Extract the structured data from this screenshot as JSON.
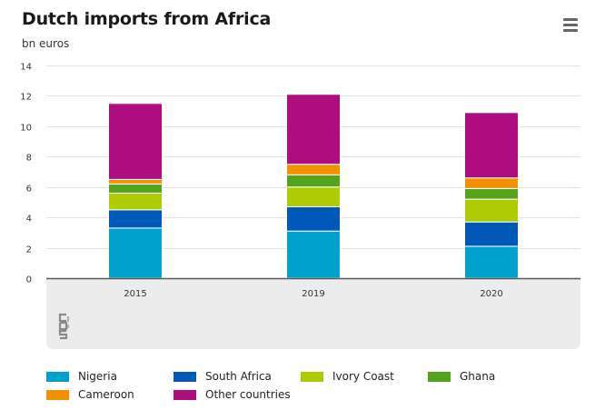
{
  "header": {
    "title": "Dutch imports from Africa",
    "unit": "bn euros"
  },
  "colors": {
    "Nigeria": "#00a1cd",
    "South Africa": "#0058b8",
    "Ivory Coast": "#afcb05",
    "Ghana": "#53a31d",
    "Cameroon": "#f39200",
    "Other countries": "#af0e80"
  },
  "chart_data": {
    "type": "bar",
    "stacked": true,
    "title": "Dutch imports from Africa",
    "ylabel": "bn euros",
    "xlabel": "",
    "categories": [
      "2015",
      "2019",
      "2020"
    ],
    "ylim": [
      0,
      14
    ],
    "yticks": [
      0,
      2,
      4,
      6,
      8,
      10,
      12,
      14
    ],
    "grid": true,
    "legend_position": "bottom",
    "series": [
      {
        "name": "Nigeria",
        "values": [
          3.3,
          3.1,
          2.1
        ]
      },
      {
        "name": "South Africa",
        "values": [
          1.2,
          1.6,
          1.6
        ]
      },
      {
        "name": "Ivory Coast",
        "values": [
          1.1,
          1.3,
          1.5
        ]
      },
      {
        "name": "Ghana",
        "values": [
          0.6,
          0.8,
          0.7
        ]
      },
      {
        "name": "Cameroon",
        "values": [
          0.3,
          0.7,
          0.7
        ]
      },
      {
        "name": "Other countries",
        "values": [
          5.0,
          4.6,
          4.3
        ]
      }
    ]
  }
}
